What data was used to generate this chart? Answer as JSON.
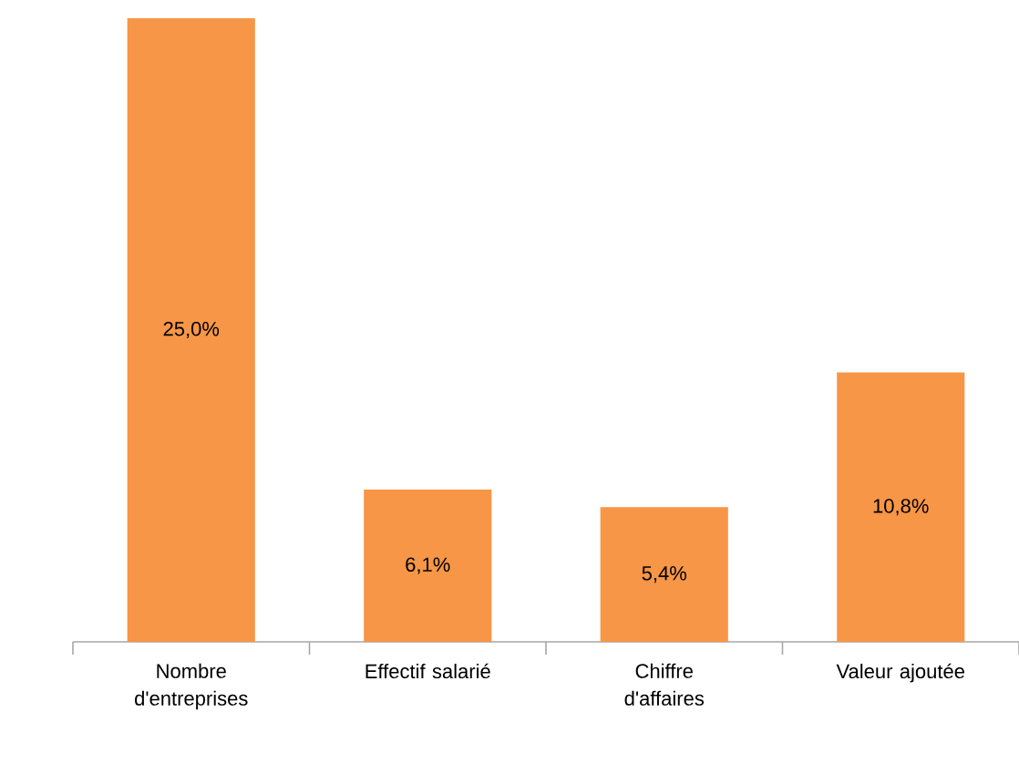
{
  "chart_data": {
    "type": "bar",
    "categories": [
      "Nombre d'entreprises",
      "Effectif salarié",
      "Chiffre d'affaires",
      "Valeur ajoutée"
    ],
    "values": [
      25.0,
      6.1,
      5.4,
      10.8
    ],
    "value_labels": [
      "25,0%",
      "6,1%",
      "5,4%",
      "10,8%"
    ],
    "color": "#f79646"
  }
}
